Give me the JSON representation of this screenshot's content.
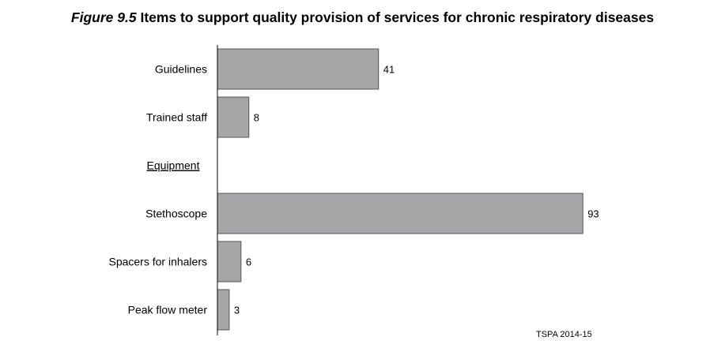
{
  "figure": {
    "label": "Figure 9.5",
    "title": "Items to support quality provision of services for chronic respiratory diseases",
    "source": "TSPA 2014-15"
  },
  "chart_data": {
    "type": "bar",
    "orientation": "horizontal",
    "categories": [
      "Guidelines",
      "Trained staff",
      "Equipment",
      "Stethoscope",
      "Spacers for inhalers",
      "Peak flow meter"
    ],
    "values": [
      41,
      8,
      null,
      93,
      6,
      3
    ],
    "heading_categories": [
      "Equipment"
    ],
    "bar_color": "#a6a6a8",
    "bar_stroke": "#555555",
    "xlim": [
      0,
      100
    ],
    "grid": false,
    "data_labels": true
  }
}
